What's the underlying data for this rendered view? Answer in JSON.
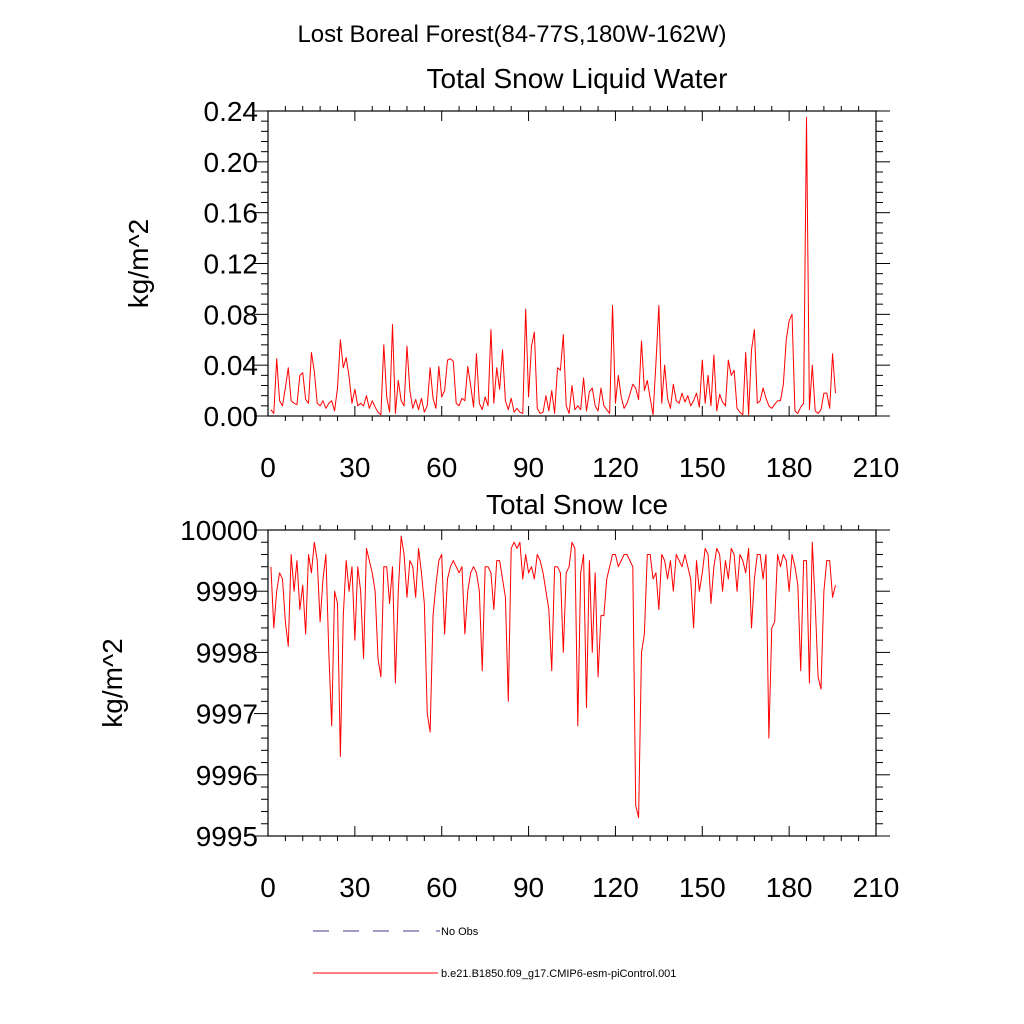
{
  "figure": {
    "title": "Lost Boreal Forest(84-77S,180W-162W)"
  },
  "legend": {
    "entries": [
      {
        "label": "No Obs",
        "color": "#3d3d8c",
        "style": "dashed"
      },
      {
        "label": "b.e21.B1850.f09_g17.CMIP6-esm-piControl.001",
        "color": "#ff0000",
        "style": "solid"
      }
    ]
  },
  "chart_data": [
    {
      "type": "line",
      "title": "Total Snow Liquid Water",
      "xlabel": "",
      "ylabel": "kg/m^2",
      "xlim": [
        0,
        210
      ],
      "ylim": [
        0,
        0.24
      ],
      "xticks": [
        0,
        30,
        60,
        90,
        120,
        150,
        180,
        210
      ],
      "xtick_labels": [
        "0",
        "30",
        "60",
        "90",
        "120",
        "150",
        "180",
        "210"
      ],
      "yticks": [
        0,
        0.04,
        0.08,
        0.12,
        0.16,
        0.2,
        0.24
      ],
      "ytick_labels": [
        "0.00",
        "0.04",
        "0.08",
        "0.12",
        "0.16",
        "0.20",
        "0.24"
      ],
      "series": [
        {
          "name": "b.e21.B1850.f09_g17.CMIP6-esm-piControl.001",
          "color": "#ff0000",
          "x_start": 1,
          "values": [
            0.005,
            0.002,
            0.045,
            0.012,
            0.008,
            0.022,
            0.038,
            0.012,
            0.01,
            0.009,
            0.032,
            0.034,
            0.013,
            0.01,
            0.05,
            0.035,
            0.01,
            0.008,
            0.012,
            0.006,
            0.01,
            0.012,
            0.004,
            0.022,
            0.06,
            0.038,
            0.046,
            0.031,
            0.01,
            0.021,
            0.008,
            0.01,
            0.008,
            0.016,
            0.006,
            0.012,
            0.007,
            0.003,
            0.001,
            0.056,
            0.015,
            0.003,
            0.072,
            0.002,
            0.028,
            0.012,
            0.008,
            0.055,
            0.02,
            0.006,
            0.013,
            0.005,
            0.014,
            0.003,
            0.008,
            0.038,
            0.014,
            0.006,
            0.039,
            0.015,
            0.02,
            0.044,
            0.045,
            0.043,
            0.01,
            0.008,
            0.014,
            0.012,
            0.039,
            0.024,
            0.007,
            0.049,
            0.01,
            0.005,
            0.015,
            0.008,
            0.068,
            0.01,
            0.038,
            0.021,
            0.052,
            0.012,
            0.005,
            0.014,
            0.003,
            0.006,
            0.003,
            0.002,
            0.084,
            0.015,
            0.055,
            0.066,
            0.006,
            0.002,
            0.003,
            0.016,
            0.004,
            0.02,
            0.002,
            0.038,
            0.036,
            0.064,
            0.008,
            0.002,
            0.024,
            0.005,
            0.008,
            0.005,
            0.03,
            0.004,
            0.019,
            0.022,
            0.008,
            0.004,
            0.022,
            0.008,
            0.005,
            0.002,
            0.087,
            0.01,
            0.032,
            0.015,
            0.006,
            0.01,
            0.017,
            0.025,
            0.022,
            0.013,
            0.059,
            0.02,
            0.028,
            0.014,
            0.001,
            0.042,
            0.087,
            0.01,
            0.04,
            0.014,
            0.006,
            0.025,
            0.012,
            0.01,
            0.018,
            0.011,
            0.016,
            0.008,
            0.012,
            0.018,
            0.007,
            0.044,
            0.01,
            0.032,
            0.008,
            0.048,
            0.004,
            0.017,
            0.011,
            0.008,
            0.044,
            0.032,
            0.036,
            0.006,
            0.003,
            0.001,
            0.05,
            0.001,
            0.052,
            0.068,
            0.01,
            0.012,
            0.022,
            0.014,
            0.008,
            0.006,
            0.009,
            0.012,
            0.012,
            0.025,
            0.06,
            0.075,
            0.08,
            0.004,
            0.002,
            0.007,
            0.01,
            0.235,
            0.005,
            0.04,
            0.004,
            0.002,
            0.005,
            0.018,
            0.018,
            0.006,
            0.049,
            0.018
          ]
        }
      ]
    },
    {
      "type": "line",
      "title": "Total Snow Ice",
      "xlabel": "",
      "ylabel": "kg/m^2",
      "xlim": [
        0,
        210
      ],
      "ylim": [
        9995,
        10000
      ],
      "xticks": [
        0,
        30,
        60,
        90,
        120,
        150,
        180,
        210
      ],
      "xtick_labels": [
        "0",
        "30",
        "60",
        "90",
        "120",
        "150",
        "180",
        "210"
      ],
      "yticks": [
        9995,
        9996,
        9997,
        9998,
        9999,
        10000
      ],
      "ytick_labels": [
        "9995",
        "9996",
        "9997",
        "9998",
        "9999",
        "10000"
      ],
      "series": [
        {
          "name": "b.e21.B1850.f09_g17.CMIP6-esm-piControl.001",
          "color": "#ff0000",
          "x_start": 1,
          "values": [
            9999.4,
            9998.4,
            9999.0,
            9999.3,
            9999.2,
            9998.5,
            9998.1,
            9999.6,
            9999.0,
            9999.5,
            9998.7,
            9999.1,
            9998.3,
            9999.6,
            9999.3,
            9999.8,
            9999.5,
            9998.5,
            9999.2,
            9999.6,
            9998.0,
            9996.8,
            9999.0,
            9998.8,
            9996.3,
            9998.6,
            9999.5,
            9999.0,
            9999.4,
            9998.2,
            9999.4,
            9999.0,
            9997.9,
            9999.7,
            9999.5,
            9999.3,
            9999.0,
            9997.9,
            9997.6,
            9999.4,
            9999.4,
            9998.8,
            9999.4,
            9997.5,
            9999.0,
            9999.9,
            9999.6,
            9998.9,
            9999.5,
            9999.4,
            9998.9,
            9999.7,
            9999.3,
            9998.8,
            9997.0,
            9996.7,
            9998.6,
            9999.1,
            9999.5,
            9999.6,
            9998.3,
            9999.2,
            9999.4,
            9999.5,
            9999.4,
            9999.3,
            9999.4,
            9998.3,
            9999.0,
            9999.3,
            9999.4,
            9999.3,
            9999.0,
            9997.7,
            9999.4,
            9999.4,
            9999.3,
            9998.7,
            9999.5,
            9999.5,
            9999.2,
            9998.9,
            9997.2,
            9999.7,
            9999.8,
            9999.7,
            9999.8,
            9999.2,
            9999.6,
            9999.3,
            9999.4,
            9999.2,
            9999.6,
            9999.5,
            9999.3,
            9999.0,
            9998.7,
            9997.7,
            9999.4,
            9999.4,
            9999.3,
            9998.0,
            9999.3,
            9999.4,
            9999.8,
            9999.7,
            9996.8,
            9999.3,
            9999.6,
            9997.1,
            9999.5,
            9998.0,
            9999.3,
            9997.6,
            9998.6,
            9998.6,
            9999.2,
            9999.4,
            9999.6,
            9999.6,
            9999.4,
            9999.5,
            9999.6,
            9999.6,
            9999.5,
            9999.4,
            9995.5,
            9995.3,
            9998.0,
            9998.3,
            9999.6,
            9999.6,
            9999.2,
            9999.3,
            9998.7,
            9999.6,
            9999.5,
            9999.2,
            9999.5,
            9999.0,
            9999.6,
            9999.5,
            9999.4,
            9999.6,
            9999.4,
            9999.2,
            9998.4,
            9999.5,
            9999.0,
            9999.3,
            9999.7,
            9999.6,
            9998.8,
            9999.4,
            9999.7,
            9999.6,
            9999.0,
            9999.5,
            9999.2,
            9999.7,
            9999.6,
            9999.0,
            9999.6,
            9999.5,
            9999.3,
            9999.7,
            9998.4,
            9999.2,
            9999.6,
            9999.6,
            9999.2,
            9999.6,
            9996.6,
            9998.4,
            9998.5,
            9999.6,
            9999.4,
            9999.6,
            9999.5,
            9999.0,
            9999.6,
            9999.4,
            9999.1,
            9997.7,
            9999.5,
            9999.5,
            9997.5,
            9999.8,
            9998.8,
            9997.6,
            9997.4,
            9999.0,
            9999.5,
            9999.5,
            9998.9,
            9999.1
          ]
        }
      ]
    }
  ]
}
